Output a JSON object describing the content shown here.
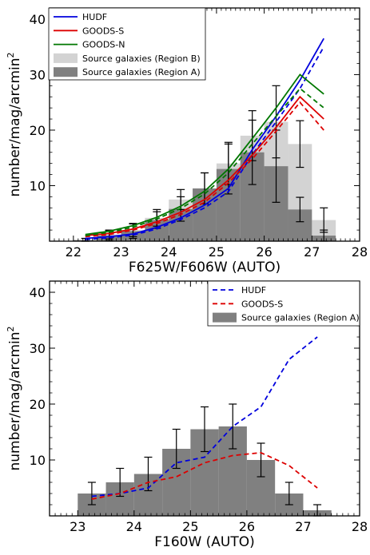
{
  "chart_data": [
    {
      "type": "bar",
      "xlabel": "F625W/F606W (AUTO)",
      "ylabel": "number/mag/arcmin",
      "ylabel_sup": "2",
      "xlim": [
        21.5,
        28
      ],
      "ylim": [
        0,
        42
      ],
      "xticks": [
        22,
        23,
        24,
        25,
        26,
        27,
        28
      ],
      "yticks": [
        10,
        20,
        30,
        40
      ],
      "legend_position": "top-left",
      "bin_width": 0.5,
      "hist_light": {
        "name": "Source galaxies (Region B)",
        "color": "#d3d3d3",
        "x": [
          22.25,
          22.75,
          23.25,
          23.75,
          24.25,
          24.75,
          25.25,
          25.75,
          26.25,
          26.75,
          27.25
        ],
        "values": [
          0.2,
          1.2,
          2.0,
          4.2,
          7.5,
          9.5,
          14.0,
          19.0,
          21.5,
          17.5,
          3.8
        ],
        "errors": [
          0.3,
          0.8,
          1.2,
          1.5,
          1.8,
          2.8,
          3.8,
          4.5,
          6.5,
          4.2,
          2.2
        ]
      },
      "hist_dark": {
        "name": "Source galaxies (Region A)",
        "color": "#808080",
        "x": [
          22.25,
          22.75,
          23.25,
          23.75,
          24.25,
          24.75,
          25.25,
          25.75,
          26.25,
          26.75,
          27.25
        ],
        "values": [
          0.2,
          1.0,
          1.8,
          3.8,
          5.8,
          9.5,
          13.0,
          16.0,
          13.5,
          5.7,
          1.0
        ],
        "errors": [
          0.3,
          0.9,
          1.3,
          1.5,
          2.2,
          2.8,
          4.5,
          5.8,
          6.5,
          2.2,
          1.0
        ]
      },
      "series": [
        {
          "name": "HUDF",
          "color": "#0000dd",
          "dash": false,
          "x": [
            22.25,
            22.75,
            23.25,
            23.75,
            24.25,
            24.75,
            25.25,
            25.75,
            26.25,
            26.75,
            27.25
          ],
          "values": [
            0.5,
            0.8,
            1.3,
            2.5,
            4.2,
            6.5,
            9.5,
            16.5,
            22.5,
            29.0,
            36.5
          ]
        },
        {
          "name": "HUDF_dashed",
          "color": "#0000dd",
          "dash": true,
          "x": [
            22.25,
            22.75,
            23.25,
            23.75,
            24.25,
            24.75,
            25.25,
            25.75,
            26.25,
            26.75,
            27.25
          ],
          "values": [
            0.3,
            0.6,
            1.1,
            2.2,
            3.9,
            6.0,
            8.9,
            15.6,
            21.5,
            27.5,
            35.0
          ]
        },
        {
          "name": "GOODS-S",
          "color": "#dd0000",
          "dash": false,
          "x": [
            22.25,
            22.75,
            23.25,
            23.75,
            24.25,
            24.75,
            25.25,
            25.75,
            26.25,
            26.75,
            27.25
          ],
          "values": [
            1.0,
            1.4,
            2.2,
            3.5,
            5.2,
            7.5,
            11.0,
            15.5,
            20.5,
            26.0,
            22.0
          ]
        },
        {
          "name": "GOODS-S_dashed",
          "color": "#dd0000",
          "dash": true,
          "x": [
            22.25,
            22.75,
            23.25,
            23.75,
            24.25,
            24.75,
            25.25,
            25.75,
            26.25,
            26.75,
            27.25
          ],
          "values": [
            0.8,
            1.2,
            2.0,
            3.2,
            4.8,
            7.0,
            10.5,
            14.8,
            19.8,
            25.0,
            20.0
          ]
        },
        {
          "name": "GOODS-N",
          "color": "#007700",
          "dash": false,
          "x": [
            22.25,
            22.75,
            23.25,
            23.75,
            24.25,
            24.75,
            25.25,
            25.75,
            26.25,
            26.75,
            27.25
          ],
          "values": [
            1.2,
            1.8,
            2.8,
            4.3,
            6.3,
            9.0,
            13.0,
            18.5,
            24.0,
            30.0,
            26.5
          ]
        },
        {
          "name": "GOODS-N_dashed",
          "color": "#007700",
          "dash": true,
          "x": [
            22.25,
            22.75,
            23.25,
            23.75,
            24.25,
            24.75,
            25.25,
            25.75,
            26.25,
            26.75,
            27.25
          ],
          "values": [
            1.0,
            1.6,
            2.5,
            4.0,
            5.9,
            8.5,
            12.3,
            17.5,
            22.5,
            27.5,
            24.0
          ]
        }
      ],
      "legend": [
        {
          "label": "HUDF",
          "kind": "line",
          "color": "#0000dd",
          "dash": false
        },
        {
          "label": "GOODS-S",
          "kind": "line",
          "color": "#dd0000",
          "dash": false
        },
        {
          "label": "GOODS-N",
          "kind": "line",
          "color": "#007700",
          "dash": false
        },
        {
          "label": "Source galaxies (Region B)",
          "kind": "patch",
          "color": "#d3d3d3"
        },
        {
          "label": "Source galaxies (Region A)",
          "kind": "patch",
          "color": "#808080"
        }
      ]
    },
    {
      "type": "bar",
      "xlabel": "F160W (AUTO)",
      "ylabel": "number/mag/arcmin",
      "ylabel_sup": "2",
      "xlim": [
        22.5,
        28
      ],
      "ylim": [
        0,
        42
      ],
      "xticks": [
        23,
        24,
        25,
        26,
        27,
        28
      ],
      "yticks": [
        10,
        20,
        30,
        40
      ],
      "legend_position": "top-right",
      "bin_width": 0.5,
      "hist_dark": {
        "name": "Source galaxies (Region A)",
        "color": "#808080",
        "x": [
          23.25,
          23.75,
          24.25,
          24.75,
          25.25,
          25.75,
          26.25,
          26.75,
          27.25
        ],
        "values": [
          4.0,
          6.0,
          7.5,
          12.0,
          15.5,
          16.0,
          10.0,
          4.0,
          1.0
        ],
        "errors": [
          2.0,
          2.5,
          3.0,
          3.5,
          4.0,
          4.0,
          3.0,
          2.0,
          1.0
        ]
      },
      "series": [
        {
          "name": "HUDF",
          "color": "#0000dd",
          "dash": true,
          "x": [
            23.25,
            23.75,
            24.25,
            24.75,
            25.25,
            25.75,
            26.25,
            26.75,
            27.25
          ],
          "values": [
            3.5,
            4.0,
            5.0,
            9.5,
            10.5,
            16.0,
            19.5,
            28.0,
            32.0
          ]
        },
        {
          "name": "GOODS-S",
          "color": "#dd0000",
          "dash": true,
          "x": [
            23.25,
            23.75,
            24.25,
            24.75,
            25.25,
            25.75,
            26.25,
            26.75,
            27.25
          ],
          "values": [
            3.0,
            4.0,
            6.0,
            7.0,
            9.5,
            10.8,
            11.3,
            9.0,
            5.0
          ]
        }
      ],
      "legend": [
        {
          "label": "HUDF",
          "kind": "line",
          "color": "#0000dd",
          "dash": true
        },
        {
          "label": "GOODS-S",
          "kind": "line",
          "color": "#dd0000",
          "dash": true
        },
        {
          "label": "Source galaxies (Region A)",
          "kind": "patch",
          "color": "#808080"
        }
      ]
    }
  ]
}
